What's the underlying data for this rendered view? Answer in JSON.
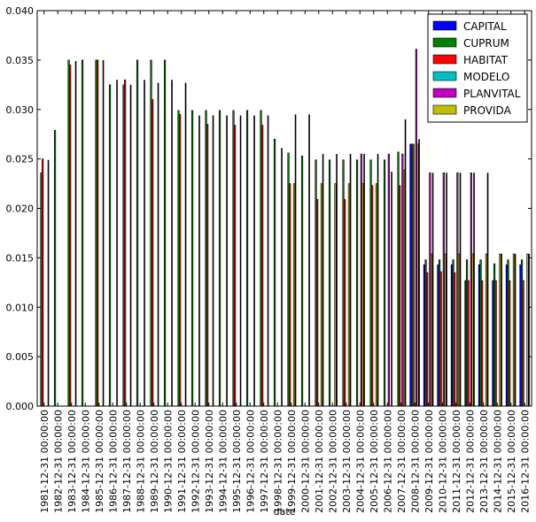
{
  "chart_data": {
    "type": "bar",
    "xlabel": "date",
    "ylabel": "",
    "title": "",
    "ylim": [
      0,
      0.04
    ],
    "yticks": [
      "0.000",
      "0.005",
      "0.010",
      "0.015",
      "0.020",
      "0.025",
      "0.030",
      "0.035",
      "0.040"
    ],
    "legend_position": "top-right",
    "grid": false,
    "categories": [
      "1981-12-31 00:00:00",
      "1982-12-31 00:00:00",
      "1983-12-31 00:00:00",
      "1984-12-31 00:00:00",
      "1985-12-31 00:00:00",
      "1986-12-31 00:00:00",
      "1987-12-31 00:00:00",
      "1988-12-31 00:00:00",
      "1989-12-31 00:00:00",
      "1990-12-31 00:00:00",
      "1991-12-31 00:00:00",
      "1992-12-31 00:00:00",
      "1993-12-31 00:00:00",
      "1994-12-31 00:00:00",
      "1995-12-31 00:00:00",
      "1996-12-31 00:00:00",
      "1997-12-31 00:00:00",
      "1998-12-31 00:00:00",
      "1999-12-31 00:00:00",
      "2000-12-31 00:00:00",
      "2001-12-31 00:00:00",
      "2002-12-31 00:00:00",
      "2003-12-31 00:00:00",
      "2004-12-31 00:00:00",
      "2005-12-31 00:00:00",
      "2006-12-31 00:00:00",
      "2007-12-31 00:00:00",
      "2008-12-31 00:00:00",
      "2009-12-31 00:00:00",
      "2010-12-31 00:00:00",
      "2011-12-31 00:00:00",
      "2012-12-31 00:00:00",
      "2013-12-31 00:00:00",
      "2014-12-31 00:00:00",
      "2015-12-31 00:00:00",
      "2016-12-31 00:00:00"
    ],
    "series": [
      {
        "name": "CAPITAL",
        "color": "#0000ff",
        "values": [
          null,
          null,
          null,
          null,
          null,
          null,
          null,
          null,
          null,
          null,
          null,
          null,
          null,
          null,
          null,
          null,
          null,
          null,
          null,
          null,
          null,
          null,
          null,
          null,
          null,
          null,
          null,
          0.0265,
          0.0143,
          0.0143,
          0.0143,
          0.0127,
          0.0143,
          0.0127,
          0.0143,
          0.0143
        ]
      },
      {
        "name": "CUPRUM",
        "color": "#008000",
        "values": [
          0.0236,
          0.0279,
          0.035,
          0.035,
          0.035,
          0.0325,
          0.0325,
          0.035,
          0.035,
          0.035,
          0.0299,
          0.0299,
          0.0299,
          0.0299,
          0.0299,
          0.0299,
          0.0299,
          0.027,
          0.0256,
          0.0253,
          0.0249,
          0.0249,
          0.0249,
          0.0249,
          0.0249,
          0.0249,
          0.0257,
          0.0265,
          0.0148,
          0.0148,
          0.0148,
          0.0148,
          0.0148,
          0.0144,
          0.0148,
          0.0148
        ]
      },
      {
        "name": "HABITAT",
        "color": "#ff0000",
        "values": [
          0.025,
          null,
          0.0345,
          null,
          0.035,
          null,
          0.033,
          null,
          0.031,
          null,
          0.0295,
          null,
          0.0285,
          null,
          0.0284,
          null,
          0.0284,
          null,
          0.0225,
          null,
          0.0209,
          null,
          0.0209,
          null,
          0.0223,
          null,
          0.0223,
          0.0265,
          0.0135,
          0.0136,
          0.0135,
          0.0127,
          0.0127,
          0.0127,
          0.0127,
          0.0127
        ]
      },
      {
        "name": "MODELO",
        "color": "#00bfbf",
        "values": [
          null,
          null,
          null,
          null,
          null,
          null,
          null,
          null,
          null,
          null,
          null,
          null,
          null,
          null,
          null,
          null,
          null,
          null,
          null,
          null,
          null,
          null,
          null,
          null,
          null,
          null,
          null,
          null,
          null,
          null,
          null,
          null,
          null,
          null,
          null,
          null
        ]
      },
      {
        "name": "PLANVITAL",
        "color": "#bf00bf",
        "values": [
          null,
          null,
          null,
          null,
          null,
          null,
          null,
          null,
          null,
          null,
          null,
          null,
          null,
          null,
          null,
          null,
          null,
          null,
          null,
          null,
          null,
          null,
          null,
          0.0255,
          null,
          0.0255,
          0.0255,
          0.0361,
          0.0236,
          0.0236,
          0.0236,
          0.0236,
          null,
          null,
          null,
          null
        ]
      },
      {
        "name": "PROVIDA",
        "color": "#bfbf00",
        "values": [
          null,
          null,
          null,
          null,
          null,
          null,
          null,
          null,
          null,
          null,
          null,
          null,
          null,
          null,
          null,
          null,
          null,
          null,
          0.0225,
          null,
          0.0225,
          0.0225,
          0.0225,
          0.0225,
          0.0225,
          null,
          0.0239,
          0.0265,
          0.0154,
          0.0154,
          0.0154,
          0.0154,
          0.0154,
          0.0154,
          0.0154,
          0.0154
        ]
      }
    ],
    "extra_black_bars": [
      0.0249,
      null,
      0.0349,
      null,
      0.035,
      0.033,
      0.0325,
      0.033,
      0.0327,
      0.033,
      0.0327,
      0.0294,
      0.0294,
      0.0294,
      0.0294,
      0.0294,
      0.0294,
      0.0261,
      0.0295,
      0.0295,
      0.0255,
      0.0255,
      0.0255,
      0.0255,
      0.0255,
      0.0237,
      0.029,
      0.027,
      0.0236,
      0.0236,
      0.0236,
      0.0236,
      0.0236,
      0.0154,
      0.0154,
      0.0154
    ]
  }
}
